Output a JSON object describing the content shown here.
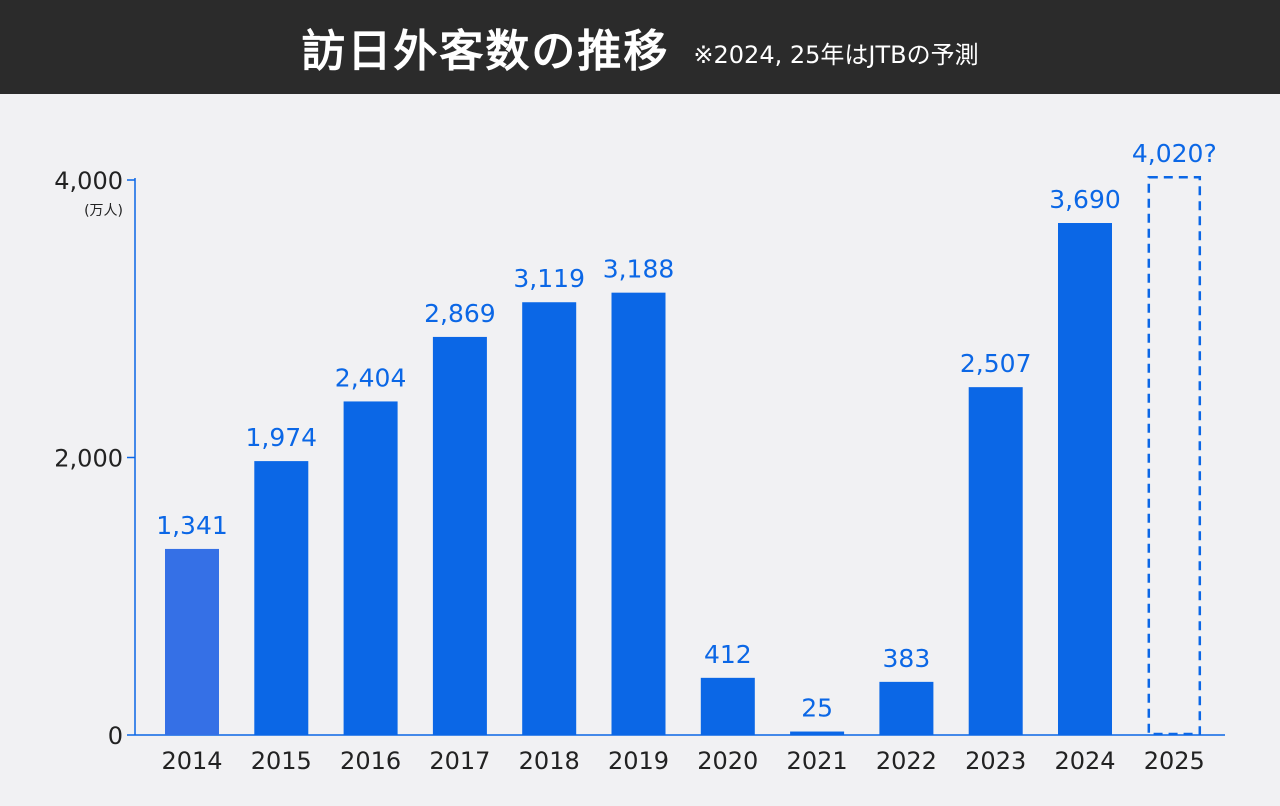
{
  "header": {
    "title": "訪日外客数の推移",
    "note": "※2024, 25年はJTBの予測"
  },
  "chart_data": {
    "type": "bar",
    "title": "訪日外客数の推移",
    "subtitle": "※2024, 25年はJTBの予測",
    "ylabel": "(万人)",
    "ylim": [
      0,
      4000
    ],
    "yticks": [
      0,
      2000,
      4000
    ],
    "ytick_labels": [
      "0",
      "2,000",
      "4,000"
    ],
    "unit": "(万人)",
    "categories": [
      "2014",
      "2015",
      "2016",
      "2017",
      "2018",
      "2019",
      "2020",
      "2021",
      "2022",
      "2023",
      "2024",
      "2025"
    ],
    "values": [
      1341,
      1974,
      2404,
      2869,
      3119,
      3188,
      412,
      25,
      383,
      2507,
      3690,
      4020
    ],
    "labels": [
      "1,341",
      "1,974",
      "2,404",
      "2,869",
      "3,119",
      "3,188",
      "412",
      "25",
      "383",
      "2,507",
      "3,690",
      "4,020?"
    ],
    "styles": [
      "highlight",
      "solid",
      "solid",
      "solid",
      "solid",
      "solid",
      "solid",
      "solid",
      "solid",
      "solid",
      "solid",
      "dashed"
    ],
    "colors": {
      "highlight": "#3570e6",
      "bar": "#0b67e6",
      "label": "#0b67e6",
      "axis": "#0b67e6",
      "text": "#222222"
    }
  }
}
